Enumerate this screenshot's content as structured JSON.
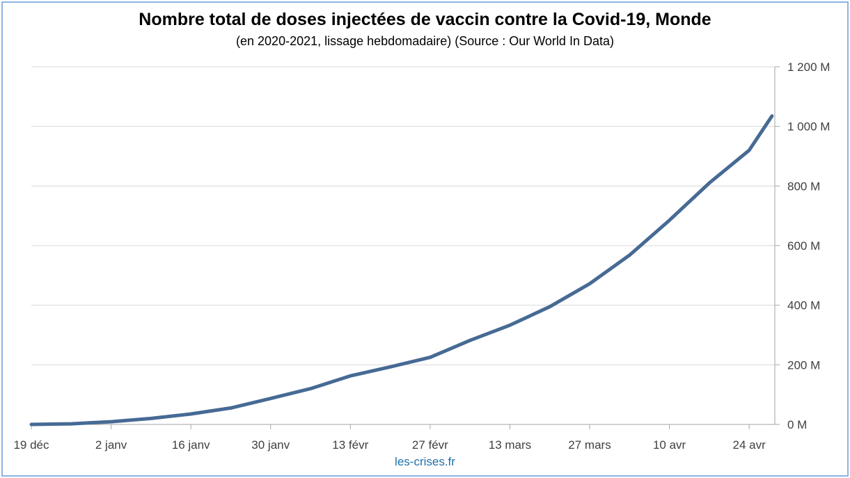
{
  "chart_data": {
    "type": "line",
    "title": "Nombre total de doses injectées de vaccin contre la Covid-19, Monde",
    "subtitle": "(en 2020-2021, lissage hebdomadaire) (Source : Our World In Data)",
    "xlabel": "",
    "ylabel": "",
    "x_ticks": [
      "19 déc",
      "2 janv",
      "16 janv",
      "30 janv",
      "13 févr",
      "27 févr",
      "13 mars",
      "27 mars",
      "10 avr",
      "24 avr"
    ],
    "y_ticks": [
      "0 M",
      "200 M",
      "400 M",
      "600 M",
      "800 M",
      "1 000 M",
      "1 200 M"
    ],
    "ylim": [
      0,
      1200
    ],
    "y_axis_position": "right",
    "grid": true,
    "legend": "none",
    "series": [
      {
        "color": "#466a94",
        "points": [
          {
            "x": "2020-12-19",
            "y": 0
          },
          {
            "x": "2020-12-26",
            "y": 2
          },
          {
            "x": "2021-01-02",
            "y": 9
          },
          {
            "x": "2021-01-09",
            "y": 20
          },
          {
            "x": "2021-01-16",
            "y": 35
          },
          {
            "x": "2021-01-23",
            "y": 55
          },
          {
            "x": "2021-01-30",
            "y": 87
          },
          {
            "x": "2021-02-06",
            "y": 120
          },
          {
            "x": "2021-02-13",
            "y": 163
          },
          {
            "x": "2021-02-20",
            "y": 193
          },
          {
            "x": "2021-02-27",
            "y": 225
          },
          {
            "x": "2021-03-06",
            "y": 282
          },
          {
            "x": "2021-03-13",
            "y": 333
          },
          {
            "x": "2021-03-20",
            "y": 395
          },
          {
            "x": "2021-03-27",
            "y": 472
          },
          {
            "x": "2021-04-03",
            "y": 568
          },
          {
            "x": "2021-04-10",
            "y": 685
          },
          {
            "x": "2021-04-17",
            "y": 810
          },
          {
            "x": "2021-04-24",
            "y": 920
          },
          {
            "x": "2021-04-28",
            "y": 1035
          }
        ]
      }
    ]
  },
  "footer": {
    "source": "les-crises.fr"
  }
}
